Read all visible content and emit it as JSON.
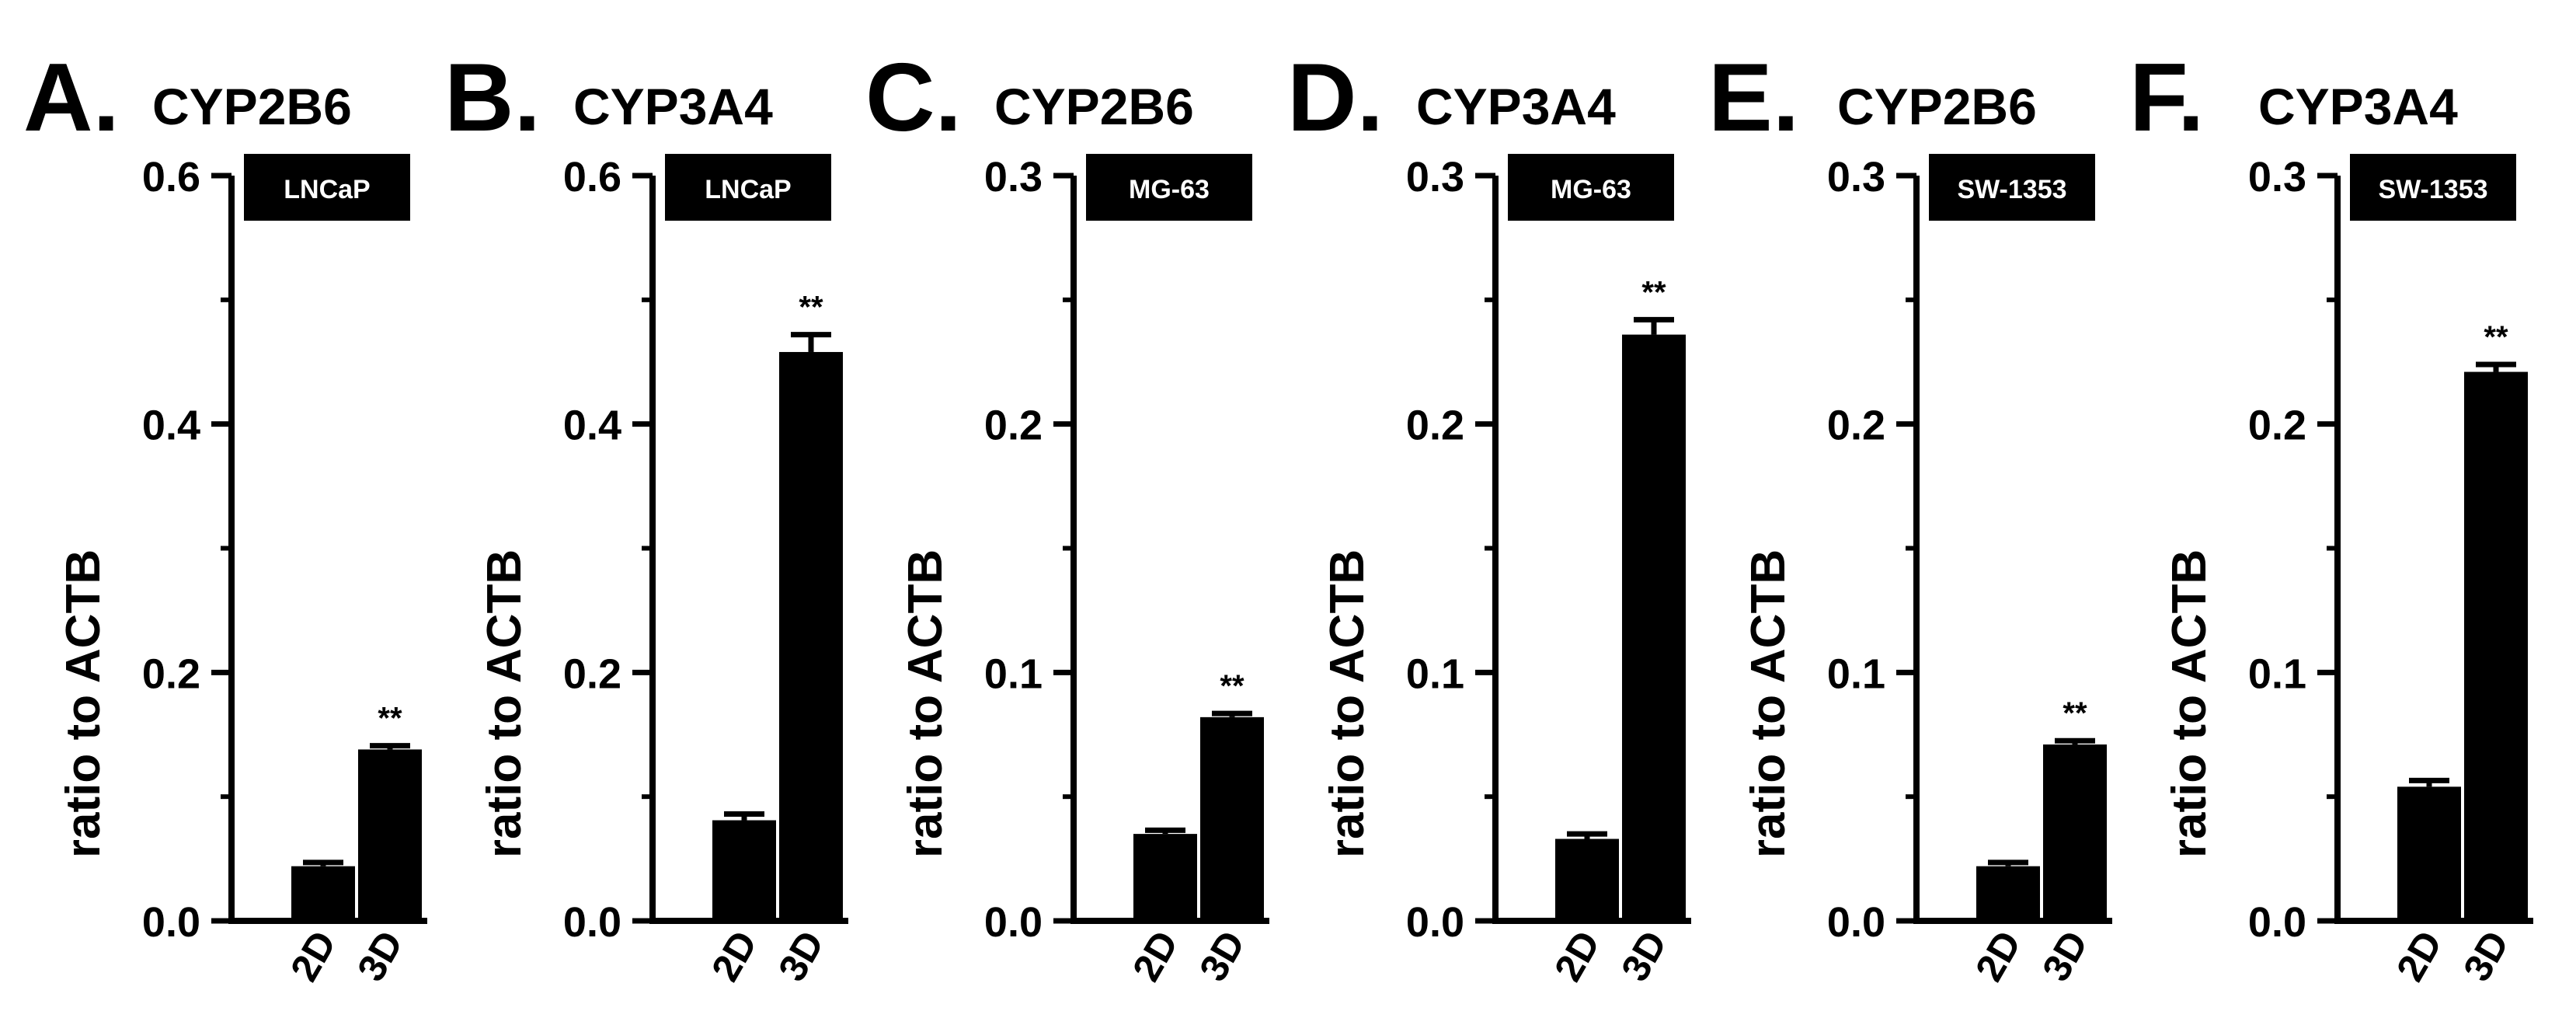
{
  "ylabel": "ratio to ACTB",
  "significance_marker": "**",
  "bar_color": "#000000",
  "chart_data": [
    {
      "type": "bar",
      "panel_letter": "A.",
      "title": "CYP2B6",
      "cell_line": "LNCaP",
      "categories": [
        "2D",
        "3D"
      ],
      "values": [
        0.044,
        0.138
      ],
      "errors": [
        0.003,
        0.003
      ],
      "significant": [
        false,
        true
      ],
      "ylabel": "ratio to ACTB",
      "ylim": [
        0,
        0.6
      ],
      "yticks": [
        {
          "value": 0,
          "label": "0.0"
        },
        {
          "value": 0.2,
          "label": "0.2"
        },
        {
          "value": 0.4,
          "label": "0.4"
        },
        {
          "value": 0.6,
          "label": "0.6"
        }
      ]
    },
    {
      "type": "bar",
      "panel_letter": "B.",
      "title": "CYP3A4",
      "cell_line": "LNCaP",
      "categories": [
        "2D",
        "3D"
      ],
      "values": [
        0.081,
        0.458
      ],
      "errors": [
        0.005,
        0.014
      ],
      "significant": [
        false,
        true
      ],
      "ylabel": "ratio to ACTB",
      "ylim": [
        0,
        0.6
      ],
      "yticks": [
        {
          "value": 0,
          "label": "0.0"
        },
        {
          "value": 0.2,
          "label": "0.2"
        },
        {
          "value": 0.4,
          "label": "0.4"
        },
        {
          "value": 0.6,
          "label": "0.6"
        }
      ]
    },
    {
      "type": "bar",
      "panel_letter": "C.",
      "title": "CYP2B6",
      "cell_line": "MG-63",
      "categories": [
        "2D",
        "3D"
      ],
      "values": [
        0.035,
        0.082
      ],
      "errors": [
        0.0015,
        0.0015
      ],
      "significant": [
        false,
        true
      ],
      "ylabel": "ratio to ACTB",
      "ylim": [
        0,
        0.3
      ],
      "yticks": [
        {
          "value": 0,
          "label": "0.0"
        },
        {
          "value": 0.1,
          "label": "0.1"
        },
        {
          "value": 0.2,
          "label": "0.2"
        },
        {
          "value": 0.3,
          "label": "0.3"
        }
      ]
    },
    {
      "type": "bar",
      "panel_letter": "D.",
      "title": "CYP3A4",
      "cell_line": "MG-63",
      "categories": [
        "2D",
        "3D"
      ],
      "values": [
        0.033,
        0.236
      ],
      "errors": [
        0.002,
        0.006
      ],
      "significant": [
        false,
        true
      ],
      "ylabel": "ratio to ACTB",
      "ylim": [
        0,
        0.3
      ],
      "yticks": [
        {
          "value": 0,
          "label": "0.0"
        },
        {
          "value": 0.1,
          "label": "0.1"
        },
        {
          "value": 0.2,
          "label": "0.2"
        },
        {
          "value": 0.3,
          "label": "0.3"
        }
      ]
    },
    {
      "type": "bar",
      "panel_letter": "E.",
      "title": "CYP2B6",
      "cell_line": "SW-1353",
      "categories": [
        "2D",
        "3D"
      ],
      "values": [
        0.022,
        0.071
      ],
      "errors": [
        0.0015,
        0.0015
      ],
      "significant": [
        false,
        true
      ],
      "ylabel": "ratio to ACTB",
      "ylim": [
        0,
        0.3
      ],
      "yticks": [
        {
          "value": 0,
          "label": "0.0"
        },
        {
          "value": 0.1,
          "label": "0.1"
        },
        {
          "value": 0.2,
          "label": "0.2"
        },
        {
          "value": 0.3,
          "label": "0.3"
        }
      ]
    },
    {
      "type": "bar",
      "panel_letter": "F.",
      "title": "CYP3A4",
      "cell_line": "SW-1353",
      "categories": [
        "2D",
        "3D"
      ],
      "values": [
        0.054,
        0.221
      ],
      "errors": [
        0.0025,
        0.003
      ],
      "significant": [
        false,
        true
      ],
      "ylabel": "ratio to ACTB",
      "ylim": [
        0,
        0.3
      ],
      "yticks": [
        {
          "value": 0,
          "label": "0.0"
        },
        {
          "value": 0.1,
          "label": "0.1"
        },
        {
          "value": 0.2,
          "label": "0.2"
        },
        {
          "value": 0.3,
          "label": "0.3"
        }
      ]
    }
  ]
}
